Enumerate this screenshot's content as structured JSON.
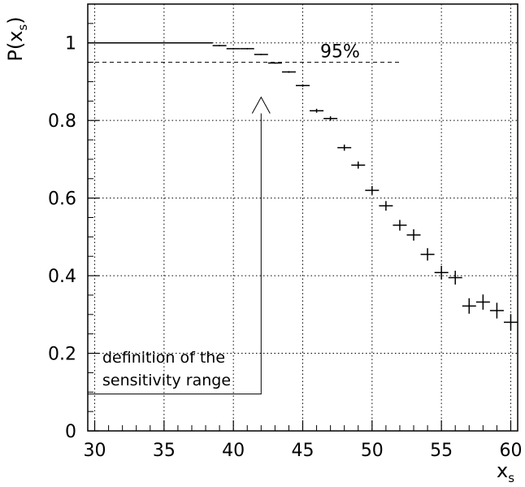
{
  "chart_data": {
    "type": "scatter",
    "ylabel_main": "P",
    "ylabel_sub": "s",
    "xlabel_main": "x",
    "xlabel_sub": "s",
    "xlim": [
      29.5,
      60.5
    ],
    "ylim": [
      0,
      1.1
    ],
    "x_ticks": [
      30,
      35,
      40,
      45,
      50,
      55,
      60
    ],
    "y_ticks": [
      0,
      0.2,
      0.4,
      0.6,
      0.8,
      1
    ],
    "y_tick_labels": [
      "0",
      "0.2",
      "0.4",
      "0.6",
      "0.8",
      "1"
    ],
    "grid": true,
    "points": [
      {
        "x": 39,
        "y": 0.993
      },
      {
        "x": 40,
        "y": 0.985
      },
      {
        "x": 41,
        "y": 0.985
      },
      {
        "x": 42,
        "y": 0.97
      },
      {
        "x": 43,
        "y": 0.948
      },
      {
        "x": 44,
        "y": 0.925
      },
      {
        "x": 45,
        "y": 0.89
      },
      {
        "x": 46,
        "y": 0.825
      },
      {
        "x": 47,
        "y": 0.805
      },
      {
        "x": 48,
        "y": 0.73
      },
      {
        "x": 49,
        "y": 0.685
      },
      {
        "x": 50,
        "y": 0.62
      },
      {
        "x": 51,
        "y": 0.58
      },
      {
        "x": 52,
        "y": 0.53
      },
      {
        "x": 53,
        "y": 0.505
      },
      {
        "x": 54,
        "y": 0.455
      },
      {
        "x": 55,
        "y": 0.408
      },
      {
        "x": 56,
        "y": 0.395
      },
      {
        "x": 57,
        "y": 0.322
      },
      {
        "x": 58,
        "y": 0.332
      },
      {
        "x": 59,
        "y": 0.31
      },
      {
        "x": 60,
        "y": 0.28
      }
    ],
    "unity_line": {
      "x_start": 29.5,
      "x_end": 38.5,
      "y": 1
    },
    "threshold": {
      "y": 0.95,
      "label": "95%",
      "x_start": 29.5,
      "x_end": 52
    },
    "annotation": {
      "line1": "definition of the",
      "line2": "sensitivity range",
      "arrow_x": 42,
      "arrow_tip_y": 0.86,
      "bracket_y": 0.095
    }
  }
}
